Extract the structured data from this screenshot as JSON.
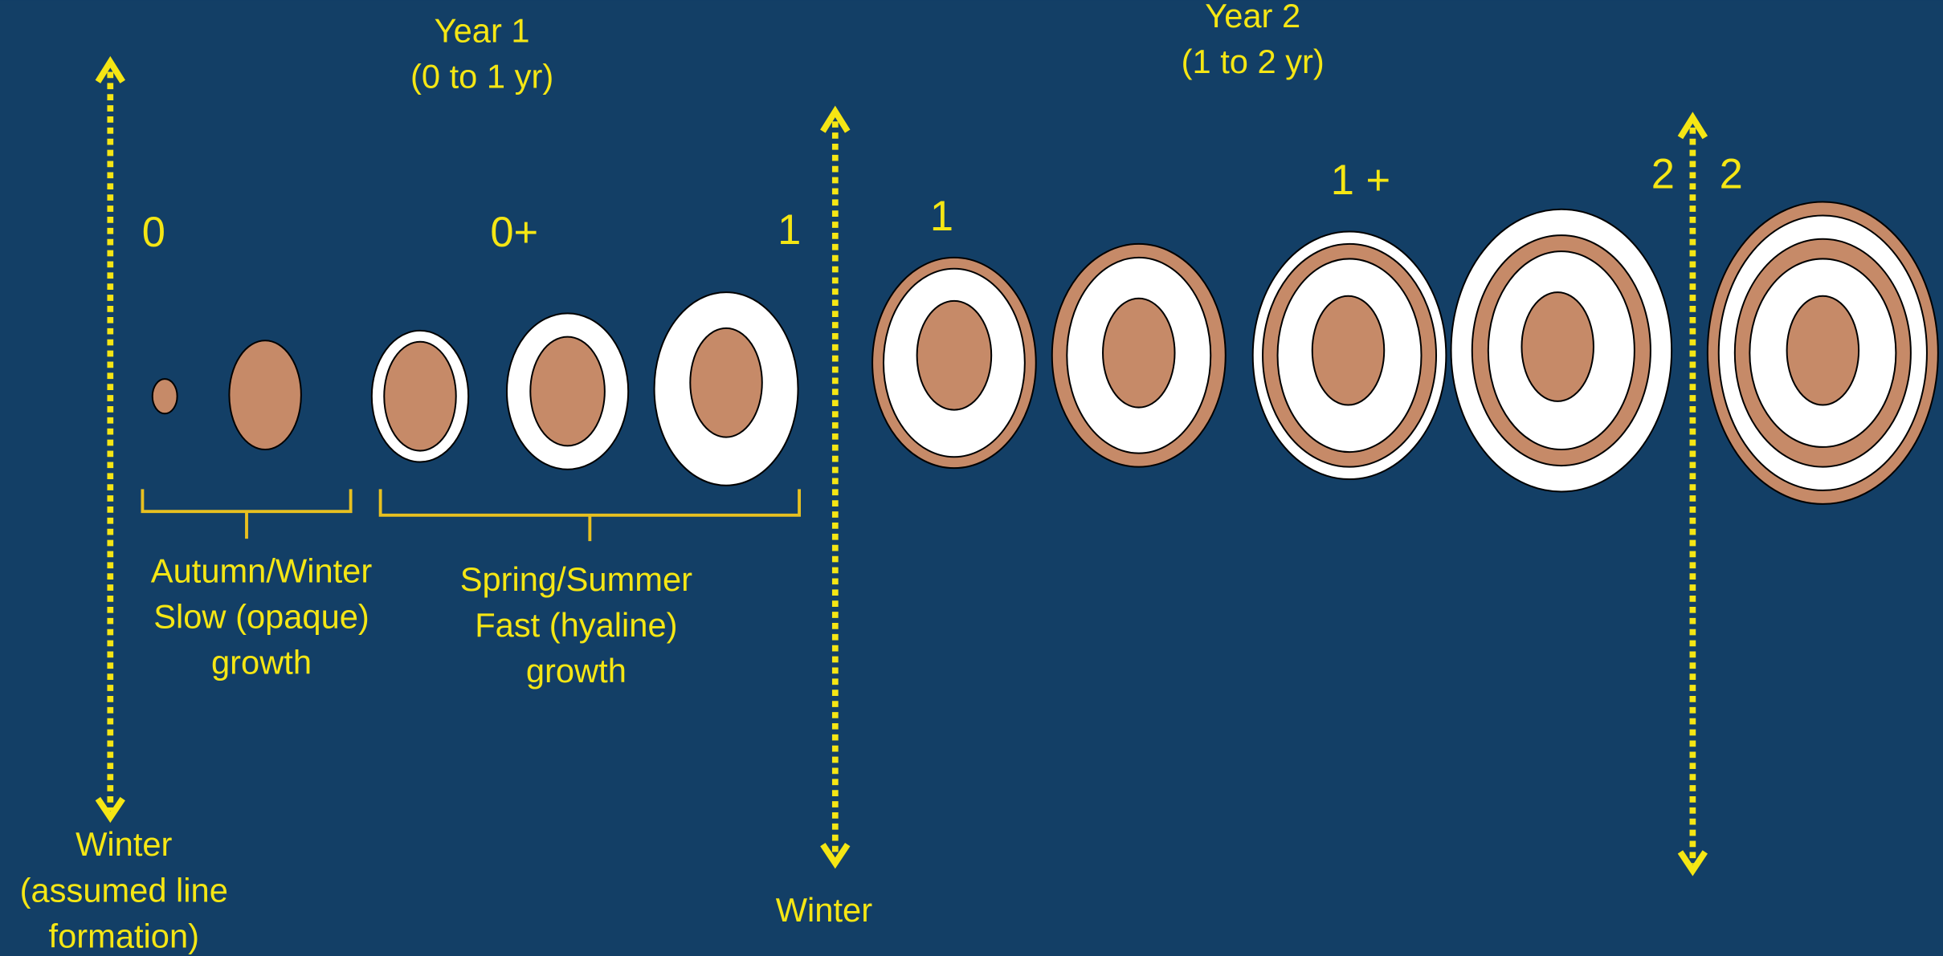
{
  "year_labels": [
    [
      "Year 1",
      "(0 to 1 yr)"
    ],
    [
      "Year 2",
      "(1 to 2 yr)"
    ]
  ],
  "age_labels": [
    "0",
    "0+",
    "1",
    "1",
    "1 +",
    "2",
    "2"
  ],
  "season_labels": [
    [
      "Autumn/Winter",
      "Slow (opaque)",
      "growth"
    ],
    [
      "Spring/Summer",
      "Fast (hyaline)",
      "growth"
    ]
  ],
  "winter_labels": [
    [
      "Winter",
      "(assumed line",
      "formation)"
    ],
    [
      "Winter"
    ]
  ]
}
